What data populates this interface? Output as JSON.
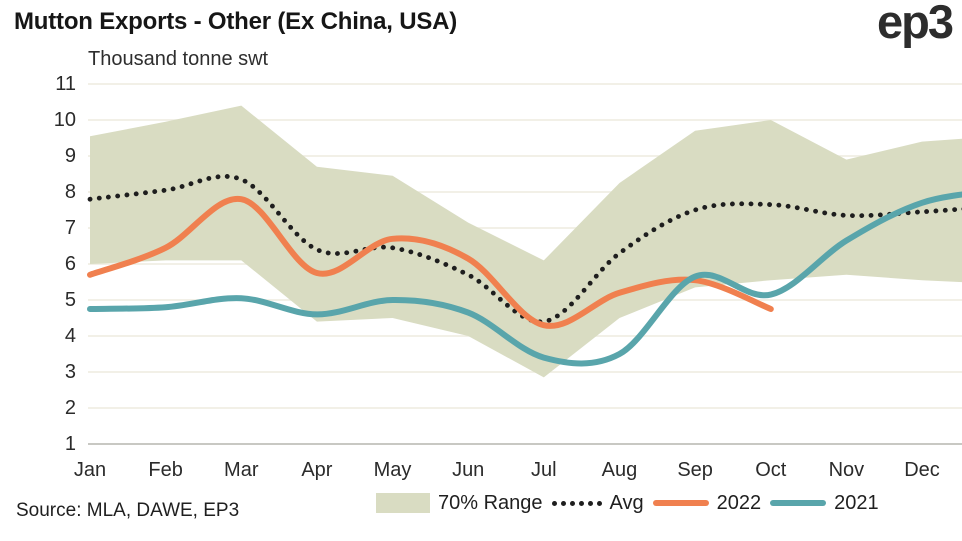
{
  "header": {
    "title": "Mutton Exports - Other (Ex China, USA)",
    "logo": "ep3"
  },
  "footer": {
    "source": "Source: MLA, DAWE, EP3"
  },
  "chart_data": {
    "type": "line",
    "title": "Mutton Exports - Other (Ex China, USA)",
    "unit_label": "Thousand tonne swt",
    "categories": [
      "Jan",
      "Feb",
      "Mar",
      "Apr",
      "May",
      "Jun",
      "Jul",
      "Aug",
      "Sep",
      "Oct",
      "Nov",
      "Dec"
    ],
    "y_tick_labels": [
      "1",
      "2",
      "3",
      "4",
      "5",
      "6",
      "7",
      "8",
      "9",
      "10",
      "11"
    ],
    "ylim": [
      1,
      11
    ],
    "grid": "horizontal",
    "legend_position": "bottom-right",
    "colors": {
      "band": "#d9dcc2",
      "avg": "#1e1e1e",
      "y2022": "#f0804f",
      "y2021": "#59a5ab",
      "gridline": "#edecdf",
      "baseline": "#c8c8c3"
    },
    "series": [
      {
        "name": "70% Range",
        "type": "band",
        "upper": [
          9.55,
          9.95,
          10.4,
          8.7,
          8.45,
          7.15,
          6.1,
          8.25,
          9.7,
          10.0,
          8.9,
          9.4
        ],
        "lower": [
          6.0,
          6.1,
          6.1,
          4.4,
          4.5,
          4.0,
          2.85,
          4.5,
          5.35,
          5.55,
          5.7,
          5.55
        ],
        "upper_edge": 9.55,
        "lower_edge": 5.45
      },
      {
        "name": "Avg",
        "type": "dotted-line",
        "values": [
          7.8,
          8.05,
          8.35,
          6.4,
          6.45,
          5.7,
          4.4,
          6.3,
          7.5,
          7.65,
          7.35,
          7.45
        ],
        "edge": 7.6
      },
      {
        "name": "2022",
        "type": "line",
        "values": [
          5.7,
          6.45,
          7.8,
          5.75,
          6.7,
          6.15,
          4.3,
          5.2,
          5.55,
          4.75,
          null,
          null
        ],
        "edge": null
      },
      {
        "name": "2021",
        "type": "line",
        "values": [
          4.75,
          4.8,
          5.05,
          4.6,
          5.0,
          4.65,
          3.4,
          3.5,
          5.65,
          5.15,
          6.65,
          7.7
        ],
        "edge": 8.05
      }
    ],
    "legend_items": [
      {
        "label": "70% Range",
        "swatch": "band"
      },
      {
        "label": "Avg",
        "swatch": "dots"
      },
      {
        "label": "2022",
        "swatch": "line-2022"
      },
      {
        "label": "2021",
        "swatch": "line-2021"
      }
    ]
  }
}
